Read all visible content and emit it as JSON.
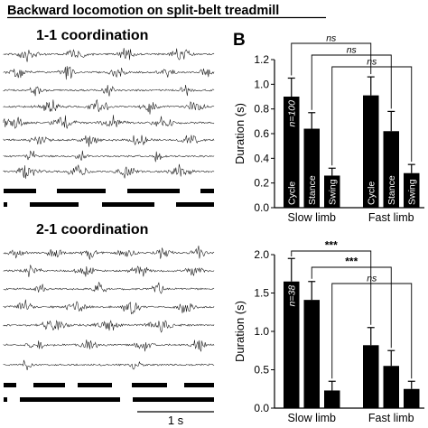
{
  "figure": {
    "title": "Backward locomotion on split-belt treadmill",
    "panel_b_letter": "B",
    "emg_panels": [
      {
        "heading": "1-1 coordination"
      },
      {
        "heading": "2-1 coordination"
      }
    ],
    "scale_bar_label": "1 s"
  },
  "chart_data": [
    {
      "type": "bar",
      "ylabel": "Duration (s)",
      "ylim": [
        0,
        1.2
      ],
      "yticks": [
        0.0,
        0.2,
        0.4,
        0.6,
        0.8,
        1.0,
        1.2
      ],
      "tick_format": 1,
      "groups": [
        "Slow limb",
        "Fast limb"
      ],
      "bar_labels": [
        "Cycle",
        "Stance",
        "Swing"
      ],
      "n_label": "n=100",
      "values": [
        [
          0.9,
          0.64,
          0.26
        ],
        [
          0.91,
          0.62,
          0.28
        ]
      ],
      "errors": [
        [
          0.15,
          0.13,
          0.06
        ],
        [
          0.15,
          0.16,
          0.07
        ]
      ],
      "comparisons": [
        {
          "label": "ns",
          "from": [
            0,
            0
          ],
          "to": [
            1,
            0
          ]
        },
        {
          "label": "ns",
          "from": [
            0,
            1
          ],
          "to": [
            1,
            1
          ]
        },
        {
          "label": "ns",
          "from": [
            0,
            2
          ],
          "to": [
            1,
            2
          ]
        }
      ],
      "grid": false
    },
    {
      "type": "bar",
      "ylabel": "Duration (s)",
      "ylim": [
        0,
        2.0
      ],
      "yticks": [
        0.0,
        0.5,
        1.0,
        1.5,
        2.0
      ],
      "tick_format": 1,
      "groups": [
        "Slow limb",
        "Fast limb"
      ],
      "bar_labels": [
        "",
        "",
        ""
      ],
      "n_label": "n=38",
      "values": [
        [
          1.65,
          1.41,
          0.23
        ],
        [
          0.82,
          0.55,
          0.25
        ]
      ],
      "errors": [
        [
          0.3,
          0.24,
          0.12
        ],
        [
          0.23,
          0.2,
          0.1
        ]
      ],
      "comparisons": [
        {
          "label": "***",
          "from": [
            0,
            0
          ],
          "to": [
            1,
            0
          ]
        },
        {
          "label": "***",
          "from": [
            0,
            1
          ],
          "to": [
            1,
            1
          ]
        },
        {
          "label": "ns",
          "from": [
            0,
            2
          ],
          "to": [
            1,
            2
          ]
        }
      ],
      "grid": false
    }
  ],
  "colors": {
    "bar": "#000000",
    "ink": "#000000",
    "trace": "#111111"
  }
}
